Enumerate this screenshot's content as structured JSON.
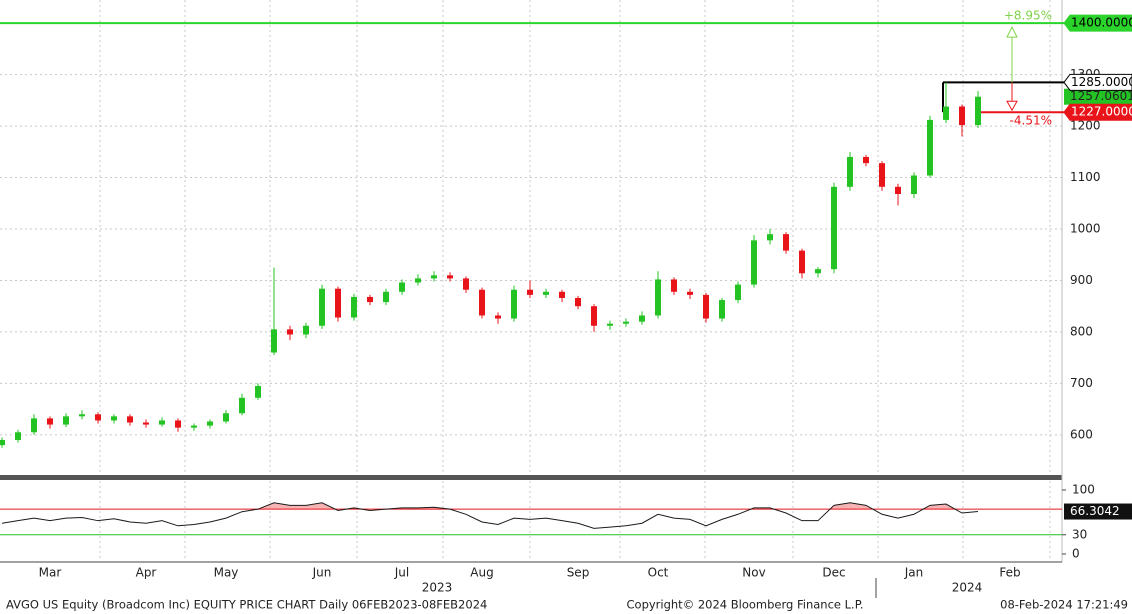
{
  "chart_data": [
    {
      "type": "candlestick",
      "categories": [
        null,
        null,
        null,
        "Mar",
        null,
        null,
        null,
        null,
        null,
        "Apr",
        null,
        null,
        null,
        null,
        "May",
        null,
        null,
        null,
        null,
        null,
        "Jun",
        null,
        null,
        null,
        null,
        "Jul",
        null,
        null,
        null,
        null,
        "Aug",
        null,
        null,
        null,
        null,
        null,
        "Sep",
        null,
        null,
        null,
        null,
        "Oct",
        null,
        null,
        null,
        null,
        null,
        "Nov",
        null,
        null,
        null,
        null,
        "Dec",
        null,
        null,
        null,
        null,
        "Jan",
        null,
        null,
        null,
        null,
        null,
        "Feb"
      ],
      "open": [
        580,
        590,
        605,
        632,
        620,
        636,
        640,
        628,
        636,
        624,
        620,
        628,
        614,
        618,
        626,
        642,
        672,
        760,
        805,
        795,
        812,
        884,
        828,
        868,
        858,
        878,
        896,
        904,
        910,
        904,
        882,
        832,
        826,
        882,
        872,
        878,
        866,
        850,
        812,
        816,
        820,
        832,
        902,
        878,
        872,
        826,
        862,
        892,
        978,
        990,
        958,
        914,
        922,
        1082,
        1140,
        1128,
        1082,
        1068,
        1104,
        1212,
        1238,
        1202,
        null,
        null
      ],
      "high": [
        595,
        610,
        640,
        636,
        642,
        648,
        644,
        640,
        640,
        630,
        634,
        632,
        622,
        630,
        648,
        680,
        700,
        925,
        812,
        818,
        892,
        888,
        874,
        872,
        884,
        902,
        912,
        918,
        916,
        908,
        886,
        838,
        890,
        900,
        884,
        882,
        870,
        854,
        822,
        826,
        840,
        918,
        906,
        884,
        876,
        866,
        898,
        988,
        1000,
        994,
        962,
        926,
        1090,
        1150,
        1144,
        1132,
        1088,
        1110,
        1220,
        1285,
        1242,
        1268,
        null,
        null
      ],
      "low": [
        575,
        585,
        600,
        612,
        615,
        630,
        622,
        622,
        618,
        614,
        616,
        606,
        608,
        612,
        622,
        638,
        668,
        755,
        784,
        788,
        806,
        820,
        822,
        852,
        852,
        872,
        890,
        898,
        898,
        876,
        826,
        816,
        820,
        866,
        866,
        858,
        844,
        800,
        804,
        810,
        814,
        826,
        872,
        864,
        818,
        820,
        856,
        886,
        970,
        952,
        904,
        906,
        914,
        1074,
        1122,
        1074,
        1046,
        1060,
        1100,
        1206,
        1180,
        1196,
        null,
        null
      ],
      "close": [
        590,
        605,
        632,
        620,
        636,
        640,
        628,
        636,
        624,
        620,
        628,
        614,
        618,
        626,
        642,
        672,
        695,
        805,
        795,
        812,
        884,
        828,
        868,
        858,
        878,
        896,
        904,
        910,
        904,
        882,
        832,
        826,
        882,
        872,
        878,
        866,
        850,
        812,
        816,
        820,
        832,
        902,
        878,
        872,
        826,
        862,
        892,
        978,
        990,
        958,
        914,
        922,
        1082,
        1140,
        1128,
        1082,
        1068,
        1104,
        1212,
        1238,
        1202,
        1257.0601,
        null,
        null
      ],
      "colors": {
        "up": "#22c322",
        "down": "#e8141a"
      },
      "ylim": [
        522,
        1445
      ],
      "yticks": [
        600,
        700,
        800,
        900,
        1000,
        1100,
        1200,
        1300
      ],
      "grid": true,
      "year_labels": [
        "2023",
        "2024"
      ],
      "hlines": [
        {
          "value": 1400,
          "label": "1400.0000",
          "color": "#2bd42b"
        },
        {
          "value": 1285,
          "label": "1285.0000",
          "color": "#000000"
        },
        {
          "value": 1227,
          "label": "1227.0000",
          "color": "#e8141a"
        }
      ],
      "annotations": [
        "+8.95%",
        "-4.51%"
      ]
    },
    {
      "type": "line",
      "values": [
        48,
        52,
        56,
        52,
        56,
        57,
        52,
        55,
        50,
        48,
        52,
        44,
        46,
        50,
        56,
        66,
        70,
        80,
        76,
        76,
        80,
        68,
        72,
        68,
        70,
        72,
        72,
        73,
        70,
        62,
        50,
        46,
        56,
        54,
        56,
        52,
        48,
        40,
        42,
        44,
        48,
        62,
        56,
        54,
        44,
        54,
        62,
        72,
        72,
        64,
        52,
        52,
        76,
        80,
        76,
        62,
        56,
        62,
        76,
        78,
        64,
        66.3042,
        null,
        null
      ],
      "color": "#1a1a1a",
      "ylim": [
        -11,
        114
      ],
      "yticks": [
        0,
        30,
        100
      ],
      "levels": [
        {
          "value": 70,
          "color": "#e8141a"
        },
        {
          "value": 30,
          "color": "#22c322"
        }
      ]
    }
  ],
  "footer": {
    "left": "AVGO US Equity (Broadcom Inc) EQUITY PRICE CHART  Daily 06FEB2023-08FEB2024",
    "center": "Copyright© 2024 Bloomberg Finance L.P.",
    "right": "08-Feb-2024 17:21:49"
  }
}
